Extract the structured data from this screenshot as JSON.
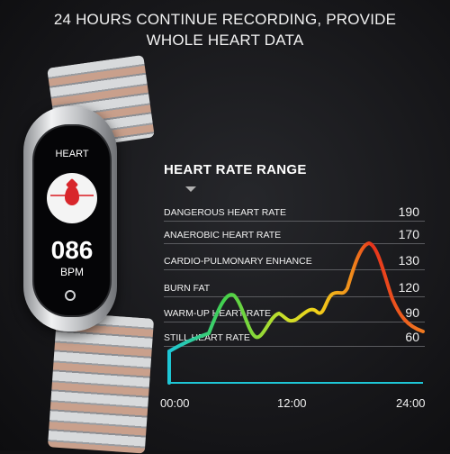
{
  "headline": {
    "line1": "24 HOURS CONTINUE RECORDING, PROVIDE",
    "line2": "WHOLE HEART DATA"
  },
  "watch": {
    "screen_title": "HEART",
    "bpm_value": "086",
    "bpm_unit": "BPM",
    "icon": "heart-drop-icon"
  },
  "panel": {
    "title": "HEART RATE RANGE",
    "rows": [
      {
        "label": "DANGEROUS HEART RATE",
        "value": "190"
      },
      {
        "label": "ANAEROBIC HEART RATE",
        "value": "170"
      },
      {
        "label": "CARDIO-PULMONARY ENHANCE",
        "value": "130"
      },
      {
        "label": "BURN FAT",
        "value": "120"
      },
      {
        "label": "WARM-UP HEART RATE",
        "value": "90"
      },
      {
        "label": "STILL HEART RATE",
        "value": "60"
      }
    ],
    "x_ticks": [
      "00:00",
      "12:00",
      "24:00"
    ]
  },
  "colors": {
    "curve_start": "#1ec6d6",
    "curve_green": "#44d04a",
    "curve_yellow": "#f2d21a",
    "curve_peak": "#e8321c",
    "watch_red": "#d8262b"
  }
}
